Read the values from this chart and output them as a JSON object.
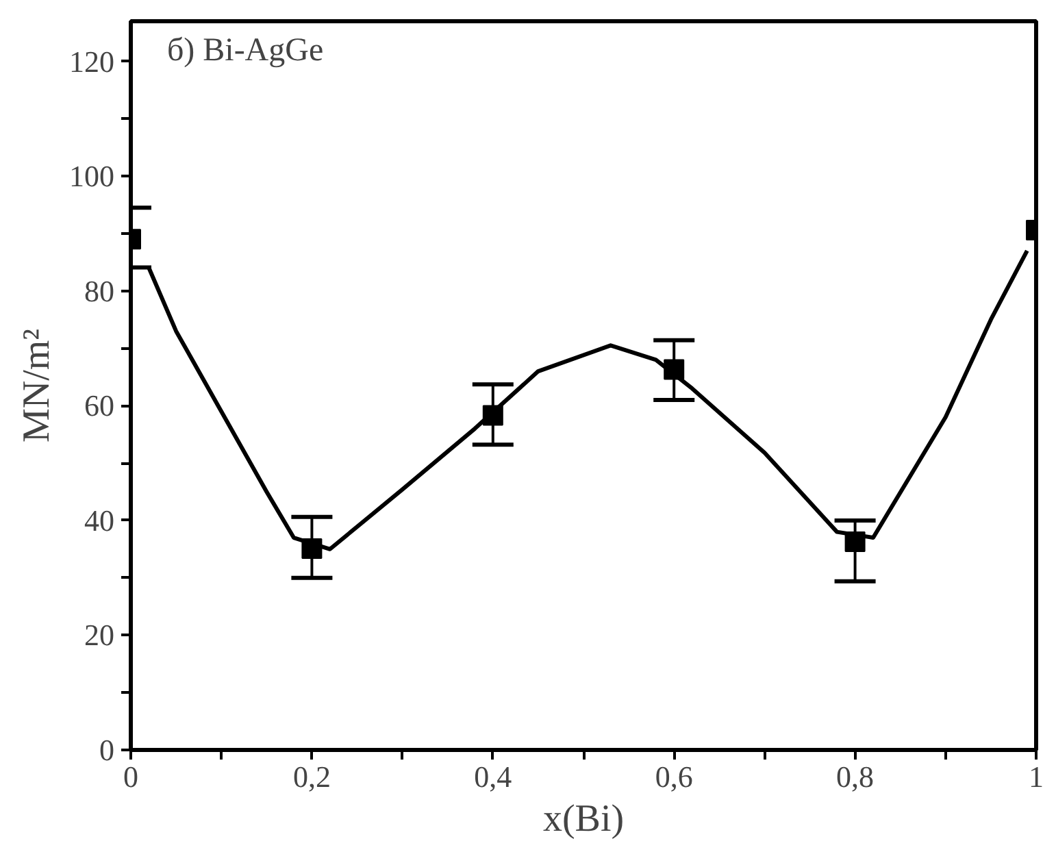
{
  "chart_data": {
    "type": "scatter",
    "xlabel": "x(Bi)",
    "ylabel": "MN/m²",
    "annotations": [
      "б) Bi-AgGe"
    ],
    "xlim": [
      0,
      1
    ],
    "ylim": [
      0,
      127
    ],
    "xticks": [
      {
        "value": 0,
        "label": "0"
      },
      {
        "value": 0.1,
        "label": null
      },
      {
        "value": 0.2,
        "label": "0,2"
      },
      {
        "value": 0.3,
        "label": null
      },
      {
        "value": 0.4,
        "label": "0,4"
      },
      {
        "value": 0.5,
        "label": null
      },
      {
        "value": 0.6,
        "label": "0,6"
      },
      {
        "value": 0.7,
        "label": null
      },
      {
        "value": 0.8,
        "label": "0,8"
      },
      {
        "value": 0.9,
        "label": null
      },
      {
        "value": 1,
        "label": "1"
      }
    ],
    "yticks": [
      0,
      {
        "value": 10,
        "label": null
      },
      20,
      {
        "value": 30,
        "label": null
      },
      40,
      {
        "value": 50,
        "label": null
      },
      60,
      {
        "value": 70,
        "label": null
      },
      80,
      {
        "value": 90,
        "label": null
      },
      100,
      {
        "value": 110,
        "label": null
      },
      120
    ],
    "grid": false,
    "series": [
      {
        "color": "#000000",
        "marker": "square",
        "x": [
          0,
          0.2,
          0.4,
          0.6,
          0.8,
          1
        ],
        "values": [
          89.0,
          35.1,
          58.3,
          66.3,
          36.3,
          90.6
        ],
        "errors": [
          [
            84.1,
            94.5
          ],
          [
            30.0,
            40.6
          ],
          [
            53.2,
            63.7
          ],
          [
            61.0,
            71.4
          ],
          [
            29.4,
            40.0
          ],
          null
        ]
      },
      {
        "type": "line",
        "color": "#000000",
        "marker": "none",
        "line_style": "solid",
        "x": [
          0.02,
          0.05,
          0.1,
          0.15,
          0.18,
          0.22,
          0.3,
          0.38,
          0.45,
          0.53,
          0.58,
          0.62,
          0.7,
          0.78,
          0.82,
          0.9,
          0.95,
          0.99
        ],
        "values": [
          84,
          73,
          59,
          45,
          37,
          35,
          45.4,
          56,
          66,
          70.5,
          68,
          63,
          51.8,
          38,
          37,
          58,
          75,
          87
        ]
      }
    ]
  }
}
